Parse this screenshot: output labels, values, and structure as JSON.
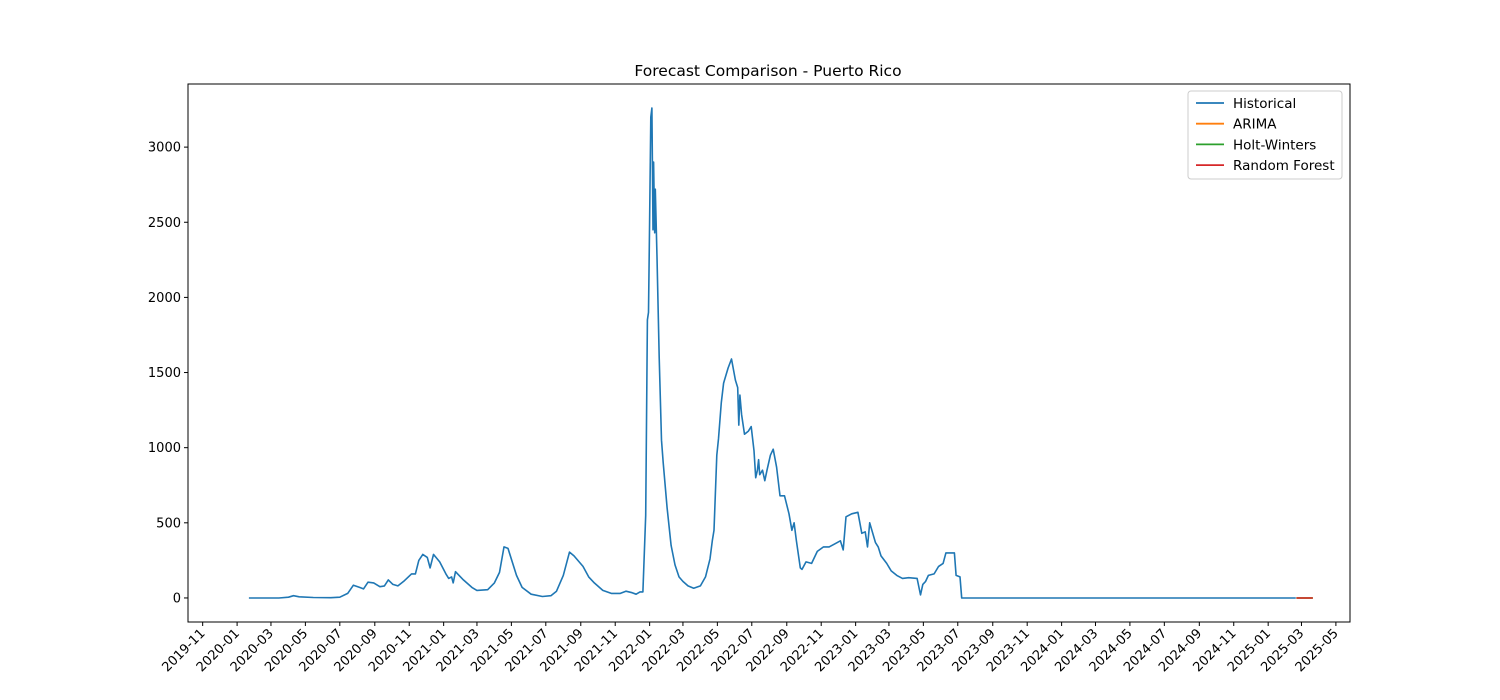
{
  "chart_data": {
    "type": "line",
    "title": "Forecast Comparison - Puerto Rico",
    "xlabel": "",
    "ylabel": "",
    "x_domain": [
      "2019-10-06",
      "2025-05-26"
    ],
    "ylim": [
      -160,
      3420
    ],
    "y_ticks": [
      0,
      500,
      1000,
      1500,
      2000,
      2500,
      3000
    ],
    "x_ticks": [
      "2019-11",
      "2020-01",
      "2020-03",
      "2020-05",
      "2020-07",
      "2020-09",
      "2020-11",
      "2021-01",
      "2021-03",
      "2021-05",
      "2021-07",
      "2021-09",
      "2021-11",
      "2022-01",
      "2022-03",
      "2022-05",
      "2022-07",
      "2022-09",
      "2022-11",
      "2023-01",
      "2023-03",
      "2023-05",
      "2023-07",
      "2023-09",
      "2023-11",
      "2024-01",
      "2024-03",
      "2024-05",
      "2024-07",
      "2024-09",
      "2024-11",
      "2025-01",
      "2025-03",
      "2025-05"
    ],
    "grid": false,
    "legend_position": "top-right",
    "series": [
      {
        "name": "Historical",
        "color": "#1f77b4",
        "points": [
          [
            "2020-01-22",
            0
          ],
          [
            "2020-03-15",
            0
          ],
          [
            "2020-04-01",
            5
          ],
          [
            "2020-04-10",
            15
          ],
          [
            "2020-04-20",
            8
          ],
          [
            "2020-05-15",
            3
          ],
          [
            "2020-06-15",
            2
          ],
          [
            "2020-07-01",
            5
          ],
          [
            "2020-07-15",
            30
          ],
          [
            "2020-07-25",
            85
          ],
          [
            "2020-08-05",
            70
          ],
          [
            "2020-08-12",
            60
          ],
          [
            "2020-08-20",
            105
          ],
          [
            "2020-08-30",
            100
          ],
          [
            "2020-09-10",
            75
          ],
          [
            "2020-09-18",
            80
          ],
          [
            "2020-09-25",
            120
          ],
          [
            "2020-10-03",
            90
          ],
          [
            "2020-10-12",
            80
          ],
          [
            "2020-10-22",
            110
          ],
          [
            "2020-11-05",
            160
          ],
          [
            "2020-11-12",
            160
          ],
          [
            "2020-11-18",
            250
          ],
          [
            "2020-11-25",
            290
          ],
          [
            "2020-12-03",
            270
          ],
          [
            "2020-12-08",
            200
          ],
          [
            "2020-12-14",
            290
          ],
          [
            "2020-12-25",
            240
          ],
          [
            "2021-01-05",
            160
          ],
          [
            "2021-01-10",
            130
          ],
          [
            "2021-01-15",
            140
          ],
          [
            "2021-01-18",
            100
          ],
          [
            "2021-01-22",
            175
          ],
          [
            "2021-02-05",
            120
          ],
          [
            "2021-02-20",
            70
          ],
          [
            "2021-03-01",
            50
          ],
          [
            "2021-03-20",
            55
          ],
          [
            "2021-04-01",
            100
          ],
          [
            "2021-04-10",
            170
          ],
          [
            "2021-04-18",
            340
          ],
          [
            "2021-04-25",
            330
          ],
          [
            "2021-05-10",
            150
          ],
          [
            "2021-05-20",
            70
          ],
          [
            "2021-06-05",
            25
          ],
          [
            "2021-06-25",
            10
          ],
          [
            "2021-07-10",
            15
          ],
          [
            "2021-07-20",
            45
          ],
          [
            "2021-08-01",
            150
          ],
          [
            "2021-08-12",
            305
          ],
          [
            "2021-08-20",
            280
          ],
          [
            "2021-09-05",
            210
          ],
          [
            "2021-09-15",
            140
          ],
          [
            "2021-09-25",
            100
          ],
          [
            "2021-10-10",
            50
          ],
          [
            "2021-10-25",
            30
          ],
          [
            "2021-11-10",
            30
          ],
          [
            "2021-11-20",
            45
          ],
          [
            "2021-12-01",
            35
          ],
          [
            "2021-12-08",
            25
          ],
          [
            "2021-12-15",
            40
          ],
          [
            "2021-12-20",
            40
          ],
          [
            "2021-12-25",
            550
          ],
          [
            "2021-12-28",
            1850
          ],
          [
            "2021-12-30",
            1900
          ],
          [
            "2022-01-01",
            2500
          ],
          [
            "2022-01-03",
            3200
          ],
          [
            "2022-01-05",
            3260
          ],
          [
            "2022-01-07",
            2450
          ],
          [
            "2022-01-08",
            2900
          ],
          [
            "2022-01-10",
            2430
          ],
          [
            "2022-01-11",
            2720
          ],
          [
            "2022-01-14",
            2270
          ],
          [
            "2022-01-18",
            1600
          ],
          [
            "2022-01-22",
            1050
          ],
          [
            "2022-01-25",
            900
          ],
          [
            "2022-02-01",
            600
          ],
          [
            "2022-02-08",
            350
          ],
          [
            "2022-02-15",
            220
          ],
          [
            "2022-02-22",
            140
          ],
          [
            "2022-03-01",
            110
          ],
          [
            "2022-03-10",
            80
          ],
          [
            "2022-03-20",
            65
          ],
          [
            "2022-04-01",
            80
          ],
          [
            "2022-04-10",
            140
          ],
          [
            "2022-04-18",
            260
          ],
          [
            "2022-04-22",
            380
          ],
          [
            "2022-04-25",
            450
          ],
          [
            "2022-04-30",
            950
          ],
          [
            "2022-05-03",
            1060
          ],
          [
            "2022-05-08",
            1300
          ],
          [
            "2022-05-12",
            1430
          ],
          [
            "2022-05-20",
            1530
          ],
          [
            "2022-05-26",
            1590
          ],
          [
            "2022-06-02",
            1450
          ],
          [
            "2022-06-06",
            1400
          ],
          [
            "2022-06-08",
            1150
          ],
          [
            "2022-06-10",
            1350
          ],
          [
            "2022-06-13",
            1220
          ],
          [
            "2022-06-18",
            1090
          ],
          [
            "2022-06-25",
            1110
          ],
          [
            "2022-06-30",
            1140
          ],
          [
            "2022-07-05",
            980
          ],
          [
            "2022-07-08",
            800
          ],
          [
            "2022-07-11",
            850
          ],
          [
            "2022-07-13",
            920
          ],
          [
            "2022-07-15",
            820
          ],
          [
            "2022-07-20",
            850
          ],
          [
            "2022-07-24",
            780
          ],
          [
            "2022-07-28",
            850
          ],
          [
            "2022-08-03",
            950
          ],
          [
            "2022-08-08",
            990
          ],
          [
            "2022-08-14",
            870
          ],
          [
            "2022-08-20",
            680
          ],
          [
            "2022-08-28",
            680
          ],
          [
            "2022-09-05",
            560
          ],
          [
            "2022-09-10",
            450
          ],
          [
            "2022-09-14",
            500
          ],
          [
            "2022-09-18",
            380
          ],
          [
            "2022-09-25",
            200
          ],
          [
            "2022-09-28",
            190
          ],
          [
            "2022-10-05",
            240
          ],
          [
            "2022-10-15",
            230
          ],
          [
            "2022-10-25",
            310
          ],
          [
            "2022-11-05",
            340
          ],
          [
            "2022-11-15",
            340
          ],
          [
            "2022-11-25",
            360
          ],
          [
            "2022-12-05",
            380
          ],
          [
            "2022-12-10",
            320
          ],
          [
            "2022-12-15",
            540
          ],
          [
            "2022-12-25",
            560
          ],
          [
            "2023-01-05",
            570
          ],
          [
            "2023-01-12",
            430
          ],
          [
            "2023-01-18",
            440
          ],
          [
            "2023-01-22",
            340
          ],
          [
            "2023-01-26",
            500
          ],
          [
            "2023-02-05",
            370
          ],
          [
            "2023-02-10",
            340
          ],
          [
            "2023-02-15",
            280
          ],
          [
            "2023-02-25",
            230
          ],
          [
            "2023-03-05",
            180
          ],
          [
            "2023-03-15",
            150
          ],
          [
            "2023-03-25",
            130
          ],
          [
            "2023-04-05",
            135
          ],
          [
            "2023-04-20",
            130
          ],
          [
            "2023-04-26",
            20
          ],
          [
            "2023-04-30",
            90
          ],
          [
            "2023-05-05",
            110
          ],
          [
            "2023-05-10",
            150
          ],
          [
            "2023-05-20",
            160
          ],
          [
            "2023-05-28",
            210
          ],
          [
            "2023-06-05",
            230
          ],
          [
            "2023-06-10",
            300
          ],
          [
            "2023-06-25",
            300
          ],
          [
            "2023-06-28",
            150
          ],
          [
            "2023-07-05",
            140
          ],
          [
            "2023-07-08",
            0
          ],
          [
            "2025-02-19",
            0
          ]
        ]
      },
      {
        "name": "ARIMA",
        "color": "#ff7f0e",
        "points": [
          [
            "2025-02-20",
            0
          ],
          [
            "2025-03-21",
            0
          ]
        ]
      },
      {
        "name": "Holt-Winters",
        "color": "#2ca02c",
        "points": [
          [
            "2025-02-20",
            0
          ],
          [
            "2025-03-21",
            0
          ]
        ]
      },
      {
        "name": "Random Forest",
        "color": "#d62728",
        "points": [
          [
            "2025-02-20",
            0
          ],
          [
            "2025-03-21",
            0
          ]
        ]
      }
    ]
  }
}
